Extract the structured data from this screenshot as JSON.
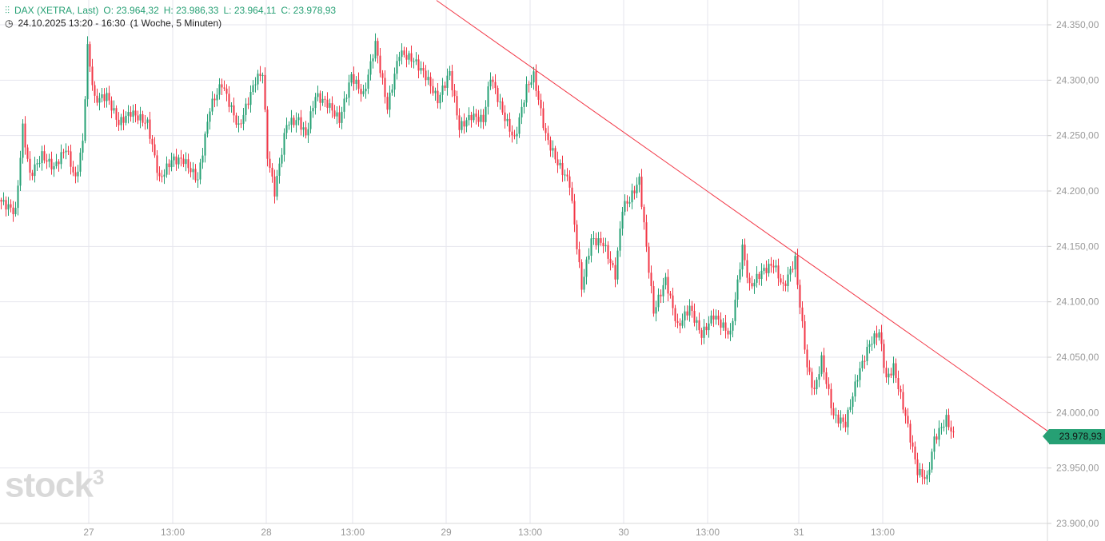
{
  "header": {
    "symbol": "DAX (XETRA, Last)",
    "open": "O: 23.964,32",
    "high": "H: 23.986,33",
    "low": "L: 23.964,11",
    "close": "C: 23.978,93",
    "range": "24.10.2025 13:20 - 16:30",
    "period": "(1 Woche, 5 Minuten)"
  },
  "watermark": "stock3",
  "last_price_label": "23.978,93",
  "colors": {
    "up": "#26a074",
    "down": "#f23645",
    "trend": "#f23645",
    "grid": "#e6e6ee",
    "axis_text": "#9a9a9a"
  },
  "chart_data": {
    "type": "candlestick",
    "title": "DAX (XETRA, Last)",
    "interval": "5 Minuten",
    "ylim": [
      23895,
      24370
    ],
    "y_ticks": [
      24350,
      24300,
      24250,
      24200,
      24150,
      24100,
      24050,
      24000,
      23950,
      23900
    ],
    "y_tick_labels": [
      "24.350,00",
      "24.300,00",
      "24.250,00",
      "24.200,00",
      "24.150,00",
      "24.100,00",
      "24.050,00",
      "24.000,00",
      "23.950,00",
      "23.900,00"
    ],
    "x_range_bars": [
      0,
      460
    ],
    "x_ticks": [
      {
        "bar": 37,
        "label": "27"
      },
      {
        "bar": 72,
        "label": "13:00"
      },
      {
        "bar": 111,
        "label": "28"
      },
      {
        "bar": 147,
        "label": "13:00"
      },
      {
        "bar": 186,
        "label": "29"
      },
      {
        "bar": 221,
        "label": "13:00"
      },
      {
        "bar": 260,
        "label": "30"
      },
      {
        "bar": 295,
        "label": "13:00"
      },
      {
        "bar": 333,
        "label": "31"
      },
      {
        "bar": 368,
        "label": "13:00"
      }
    ],
    "close_path": [
      [
        0,
        24192
      ],
      [
        7,
        24181
      ],
      [
        10,
        24257
      ],
      [
        13,
        24214
      ],
      [
        18,
        24232
      ],
      [
        23,
        24221
      ],
      [
        28,
        24239
      ],
      [
        32,
        24210
      ],
      [
        35,
        24244
      ],
      [
        37,
        24329
      ],
      [
        40,
        24282
      ],
      [
        45,
        24286
      ],
      [
        50,
        24261
      ],
      [
        55,
        24271
      ],
      [
        62,
        24261
      ],
      [
        67,
        24210
      ],
      [
        72,
        24228
      ],
      [
        77,
        24228
      ],
      [
        83,
        24210
      ],
      [
        88,
        24275
      ],
      [
        93,
        24297
      ],
      [
        100,
        24257
      ],
      [
        107,
        24300
      ],
      [
        110,
        24307
      ],
      [
        112,
        24232
      ],
      [
        115,
        24199
      ],
      [
        120,
        24261
      ],
      [
        125,
        24264
      ],
      [
        128,
        24250
      ],
      [
        132,
        24286
      ],
      [
        137,
        24279
      ],
      [
        142,
        24264
      ],
      [
        147,
        24304
      ],
      [
        152,
        24286
      ],
      [
        157,
        24333
      ],
      [
        162,
        24275
      ],
      [
        167,
        24325
      ],
      [
        173,
        24318
      ],
      [
        178,
        24304
      ],
      [
        183,
        24282
      ],
      [
        188,
        24307
      ],
      [
        192,
        24257
      ],
      [
        197,
        24268
      ],
      [
        202,
        24264
      ],
      [
        205,
        24304
      ],
      [
        210,
        24271
      ],
      [
        215,
        24246
      ],
      [
        220,
        24293
      ],
      [
        223,
        24304
      ],
      [
        228,
        24250
      ],
      [
        233,
        24225
      ],
      [
        238,
        24207
      ],
      [
        243,
        24113
      ],
      [
        247,
        24156
      ],
      [
        252,
        24153
      ],
      [
        257,
        24124
      ],
      [
        260,
        24185
      ],
      [
        263,
        24192
      ],
      [
        267,
        24210
      ],
      [
        270,
        24149
      ],
      [
        273,
        24091
      ],
      [
        278,
        24120
      ],
      [
        283,
        24077
      ],
      [
        288,
        24095
      ],
      [
        293,
        24070
      ],
      [
        298,
        24088
      ],
      [
        305,
        24070
      ],
      [
        310,
        24149
      ],
      [
        313,
        24113
      ],
      [
        318,
        24127
      ],
      [
        323,
        24134
      ],
      [
        327,
        24113
      ],
      [
        332,
        24138
      ],
      [
        333,
        24116
      ],
      [
        337,
        24041
      ],
      [
        340,
        24019
      ],
      [
        343,
        24048
      ],
      [
        348,
        23997
      ],
      [
        353,
        23990
      ],
      [
        358,
        24033
      ],
      [
        363,
        24062
      ],
      [
        367,
        24073
      ],
      [
        370,
        24030
      ],
      [
        373,
        24041
      ],
      [
        378,
        23997
      ],
      [
        383,
        23947
      ],
      [
        387,
        23940
      ],
      [
        390,
        23976
      ],
      [
        395,
        23994
      ],
      [
        398,
        23979
      ]
    ],
    "last": 23978.93,
    "trendline": [
      [
        182,
        24372
      ],
      [
        437,
        23983
      ]
    ]
  }
}
